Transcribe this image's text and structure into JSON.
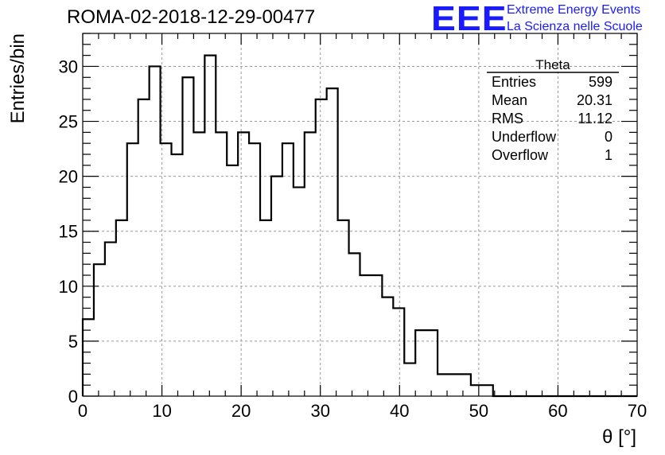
{
  "header": {
    "run_title": "ROMA-02-2018-12-29-00477",
    "logo_text": "EEE",
    "logo_line1": "Extreme Energy Events",
    "logo_line2": "La Scienza nelle Scuole"
  },
  "stats": {
    "title": "Theta",
    "rows": [
      {
        "label": "Entries",
        "value": "599"
      },
      {
        "label": "Mean",
        "value": "20.31"
      },
      {
        "label": "RMS",
        "value": "11.12"
      },
      {
        "label": "Underflow",
        "value": "0"
      },
      {
        "label": "Overflow",
        "value": "1"
      }
    ]
  },
  "colors": {
    "logo": "#1a1aff",
    "line": "#000000",
    "grid": "#999999"
  },
  "chart_data": {
    "type": "bar",
    "style": "step-histogram",
    "xlabel": "θ [°]",
    "ylabel": "Entries/bin",
    "xlim": [
      0,
      70
    ],
    "ylim": [
      0,
      33
    ],
    "grid": true,
    "bin_width": 1.4,
    "x_ticks": [
      0,
      10,
      20,
      30,
      40,
      50,
      60,
      70
    ],
    "y_ticks": [
      0,
      5,
      10,
      15,
      20,
      25,
      30
    ],
    "values": [
      7,
      12,
      14,
      16,
      23,
      27,
      30,
      23,
      22,
      29,
      24,
      31,
      24,
      21,
      24,
      23,
      16,
      20,
      23,
      19,
      24,
      27,
      28,
      16,
      13,
      11,
      11,
      9,
      8,
      3,
      6,
      6,
      2,
      2,
      2,
      1,
      1,
      0,
      0,
      0,
      0,
      0,
      0,
      0,
      0,
      0,
      0,
      0,
      0,
      0
    ]
  }
}
